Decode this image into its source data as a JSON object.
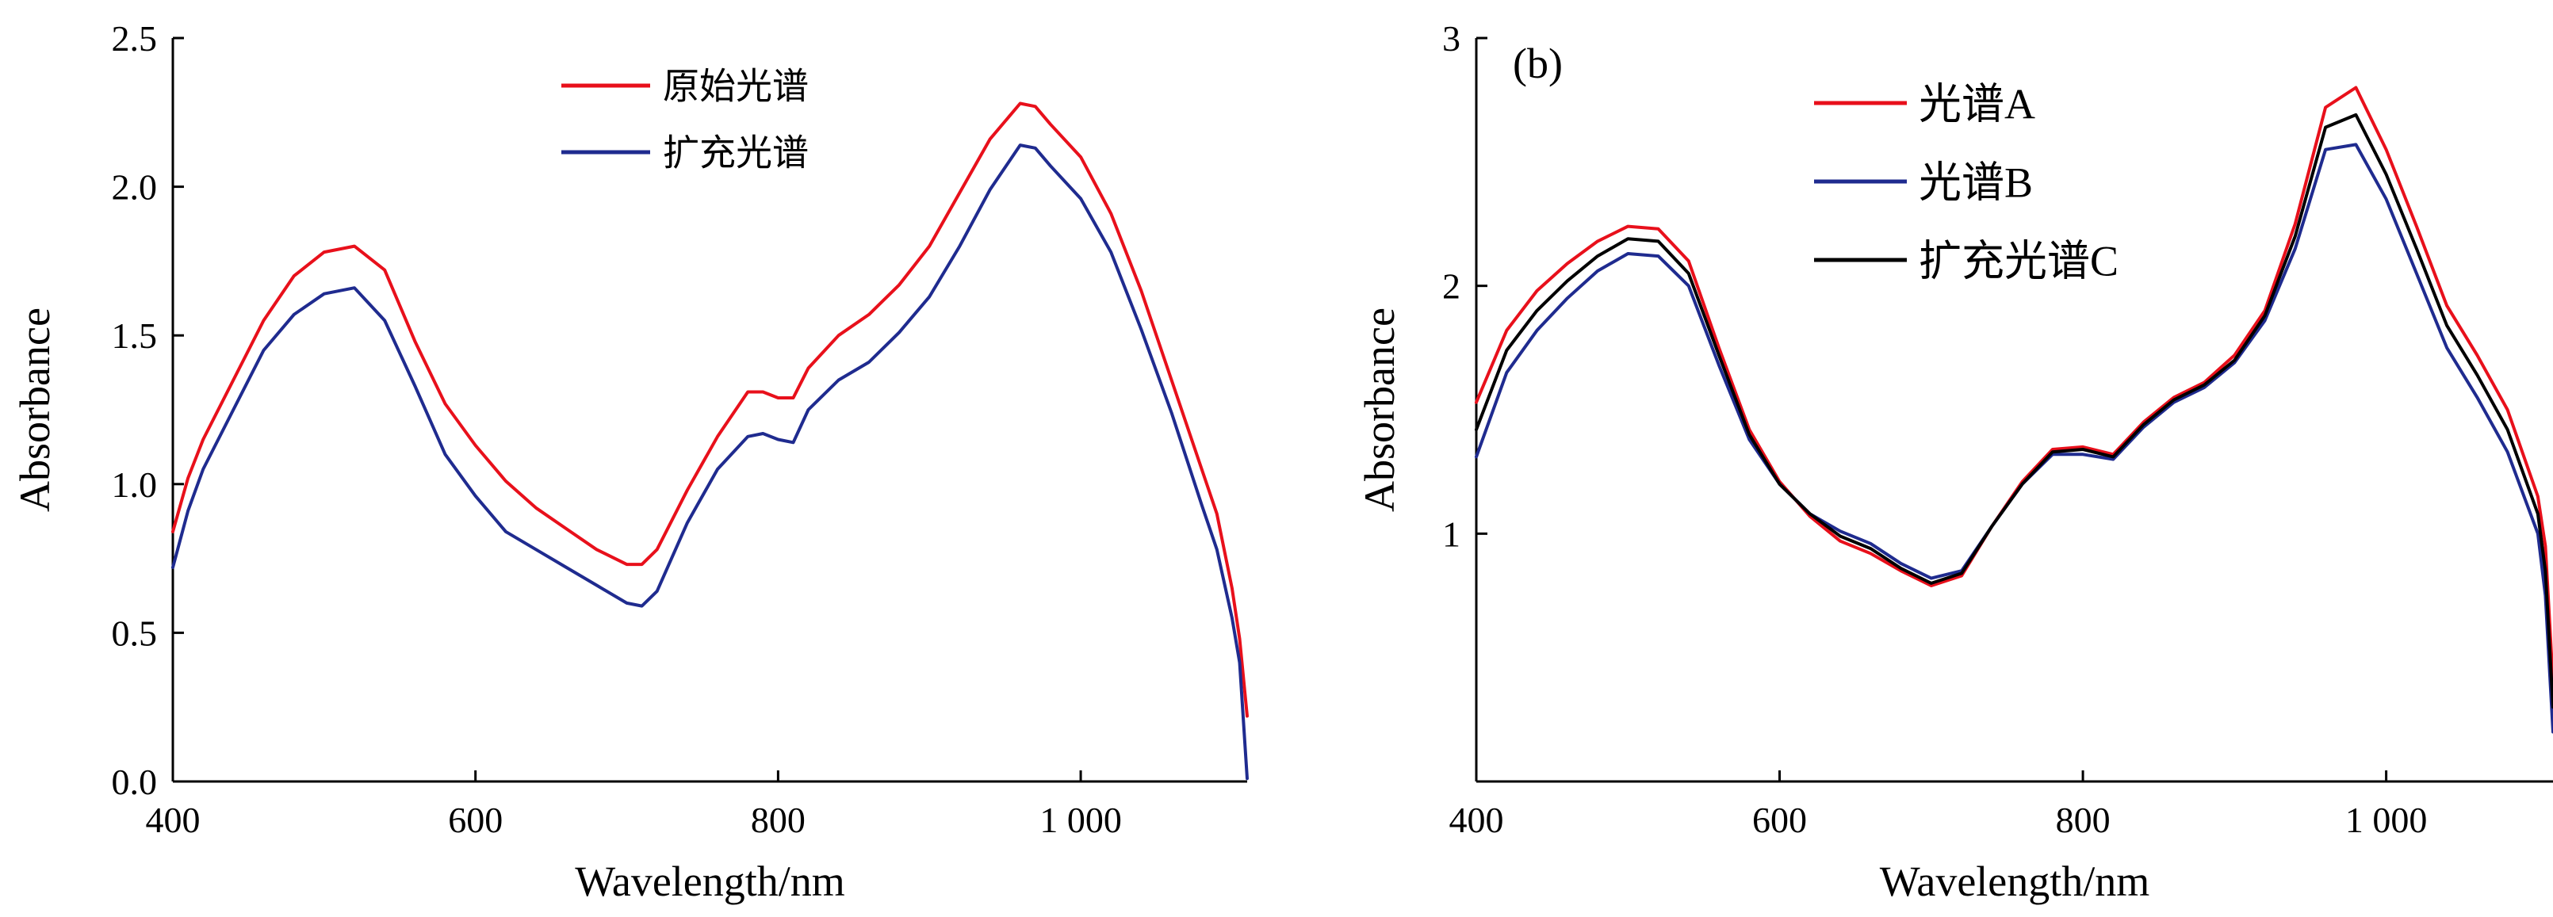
{
  "chart_data": [
    {
      "type": "line",
      "panel_label": "",
      "xlabel": "Wavelength/nm",
      "ylabel": "Absorbance",
      "xlim": [
        400,
        1110
      ],
      "ylim": [
        0,
        2.5
      ],
      "xticks": [
        400,
        600,
        800,
        1000
      ],
      "xtick_labels": [
        "400",
        "600",
        "800",
        "1 000"
      ],
      "yticks": [
        0,
        0.5,
        1,
        1.5,
        2,
        2.5
      ],
      "ytick_labels": [
        "0.0",
        "0.5",
        "1.0",
        "1.5",
        "2.0",
        "2.5"
      ],
      "grid": false,
      "legend_position": "top-center",
      "series": [
        {
          "name": "原始光谱",
          "color": "#e8101b",
          "x": [
            400,
            410,
            420,
            440,
            460,
            480,
            500,
            520,
            540,
            560,
            580,
            600,
            620,
            640,
            660,
            680,
            700,
            710,
            720,
            740,
            760,
            780,
            790,
            800,
            810,
            820,
            840,
            860,
            880,
            900,
            920,
            940,
            960,
            970,
            980,
            1000,
            1020,
            1040,
            1060,
            1080,
            1090,
            1100,
            1105,
            1110
          ],
          "y": [
            0.84,
            1.02,
            1.15,
            1.35,
            1.55,
            1.7,
            1.78,
            1.8,
            1.72,
            1.48,
            1.27,
            1.13,
            1.01,
            0.92,
            0.85,
            0.78,
            0.73,
            0.73,
            0.78,
            0.98,
            1.16,
            1.31,
            1.31,
            1.29,
            1.29,
            1.39,
            1.5,
            1.57,
            1.67,
            1.8,
            1.98,
            2.16,
            2.28,
            2.27,
            2.21,
            2.1,
            1.91,
            1.65,
            1.35,
            1.05,
            0.9,
            0.65,
            0.48,
            0.22
          ]
        },
        {
          "name": "扩充光谱",
          "color": "#1f2b8f",
          "x": [
            400,
            410,
            420,
            440,
            460,
            480,
            500,
            520,
            540,
            560,
            580,
            600,
            620,
            640,
            660,
            680,
            700,
            710,
            720,
            740,
            760,
            780,
            790,
            800,
            810,
            820,
            840,
            860,
            880,
            900,
            920,
            940,
            960,
            970,
            980,
            1000,
            1020,
            1040,
            1060,
            1080,
            1090,
            1100,
            1105,
            1110
          ],
          "y": [
            0.72,
            0.91,
            1.05,
            1.25,
            1.45,
            1.57,
            1.64,
            1.66,
            1.55,
            1.33,
            1.1,
            0.96,
            0.84,
            0.78,
            0.72,
            0.66,
            0.6,
            0.59,
            0.64,
            0.87,
            1.05,
            1.16,
            1.17,
            1.15,
            1.14,
            1.25,
            1.35,
            1.41,
            1.51,
            1.63,
            1.8,
            1.99,
            2.14,
            2.13,
            2.07,
            1.96,
            1.78,
            1.52,
            1.24,
            0.93,
            0.78,
            0.55,
            0.4,
            0.01
          ]
        }
      ]
    },
    {
      "type": "line",
      "panel_label": "(b)",
      "xlabel": "Wavelength/nm",
      "ylabel": "Absorbance",
      "xlim": [
        400,
        1110
      ],
      "ylim": [
        0,
        3
      ],
      "xticks": [
        400,
        600,
        800,
        1000
      ],
      "xtick_labels": [
        "400",
        "600",
        "800",
        "1 000"
      ],
      "yticks": [
        1,
        2,
        3
      ],
      "ytick_labels": [
        "1",
        "2",
        "3"
      ],
      "grid": false,
      "legend_position": "top-center",
      "series": [
        {
          "name": "光谱A",
          "color": "#e8101b",
          "x": [
            400,
            420,
            440,
            460,
            480,
            500,
            520,
            540,
            560,
            580,
            600,
            620,
            640,
            660,
            680,
            700,
            720,
            740,
            760,
            780,
            800,
            820,
            840,
            860,
            880,
            900,
            920,
            940,
            960,
            980,
            1000,
            1020,
            1040,
            1060,
            1080,
            1100,
            1105,
            1110
          ],
          "y": [
            1.53,
            1.82,
            1.98,
            2.09,
            2.18,
            2.24,
            2.23,
            2.1,
            1.75,
            1.42,
            1.21,
            1.07,
            0.97,
            0.92,
            0.85,
            0.79,
            0.83,
            1.03,
            1.21,
            1.34,
            1.35,
            1.32,
            1.45,
            1.55,
            1.61,
            1.72,
            1.9,
            2.25,
            2.72,
            2.8,
            2.55,
            2.24,
            1.92,
            1.72,
            1.5,
            1.15,
            0.95,
            0.4
          ]
        },
        {
          "name": "光谱B",
          "color": "#1f2b8f",
          "x": [
            400,
            420,
            440,
            460,
            480,
            500,
            520,
            540,
            560,
            580,
            600,
            620,
            640,
            660,
            680,
            700,
            720,
            740,
            760,
            780,
            800,
            820,
            840,
            860,
            880,
            900,
            920,
            940,
            960,
            980,
            1000,
            1020,
            1040,
            1060,
            1080,
            1100,
            1105,
            1110
          ],
          "y": [
            1.31,
            1.65,
            1.82,
            1.95,
            2.06,
            2.13,
            2.12,
            2.0,
            1.68,
            1.38,
            1.2,
            1.08,
            1.01,
            0.96,
            0.88,
            0.82,
            0.85,
            1.03,
            1.2,
            1.32,
            1.32,
            1.3,
            1.43,
            1.53,
            1.59,
            1.69,
            1.86,
            2.15,
            2.55,
            2.57,
            2.35,
            2.05,
            1.75,
            1.55,
            1.33,
            1.0,
            0.75,
            0.2
          ]
        },
        {
          "name": "扩充光谱C",
          "color": "#000000",
          "x": [
            400,
            420,
            440,
            460,
            480,
            500,
            520,
            540,
            560,
            580,
            600,
            620,
            640,
            660,
            680,
            700,
            720,
            740,
            760,
            780,
            800,
            820,
            840,
            860,
            880,
            900,
            920,
            940,
            960,
            980,
            1000,
            1020,
            1040,
            1060,
            1080,
            1100,
            1105,
            1110
          ],
          "y": [
            1.42,
            1.74,
            1.9,
            2.02,
            2.12,
            2.19,
            2.18,
            2.05,
            1.72,
            1.4,
            1.2,
            1.08,
            0.99,
            0.94,
            0.86,
            0.8,
            0.84,
            1.03,
            1.2,
            1.33,
            1.34,
            1.31,
            1.44,
            1.54,
            1.6,
            1.7,
            1.88,
            2.2,
            2.64,
            2.69,
            2.45,
            2.15,
            1.84,
            1.64,
            1.42,
            1.08,
            0.85,
            0.3
          ]
        }
      ]
    }
  ]
}
